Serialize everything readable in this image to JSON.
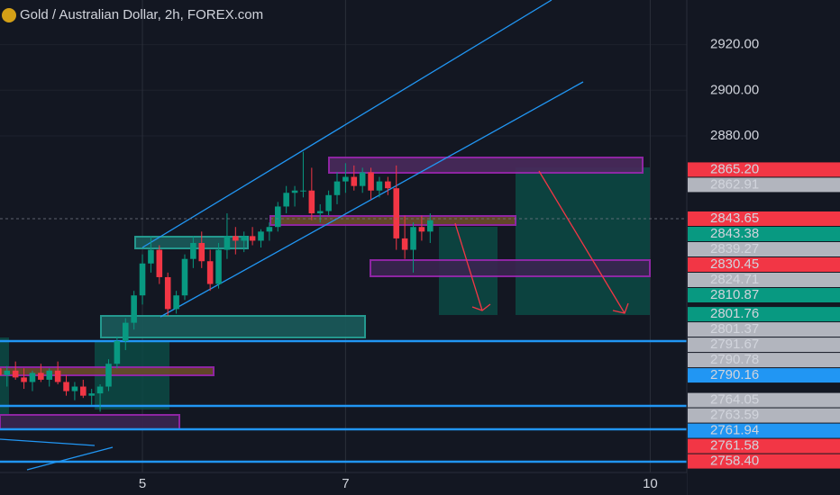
{
  "chart_data": {
    "type": "candlestick",
    "title": "Gold / Australian Dollar, 2h, FOREX.com",
    "x": [
      -17,
      -16,
      -15,
      -14,
      -13,
      -12,
      -11,
      -10,
      -9,
      -8,
      -7,
      -6,
      -5,
      -4,
      -3,
      -2,
      -1,
      0,
      1,
      2,
      3,
      4,
      5,
      6,
      7,
      8,
      9,
      10,
      11,
      12,
      13,
      14,
      15,
      16,
      17,
      18,
      19,
      20,
      21,
      22,
      23,
      24,
      25,
      26,
      27,
      28,
      29,
      30,
      31,
      32,
      33,
      34
    ],
    "open": [
      2778,
      2775,
      2777,
      2774,
      2772,
      2776,
      2773,
      2777,
      2772,
      2768,
      2770,
      2766,
      2767,
      2770,
      2780,
      2790,
      2798,
      2810,
      2824,
      2830,
      2818,
      2804,
      2810,
      2826,
      2833,
      2825,
      2815,
      2830,
      2836,
      2834,
      2836,
      2834,
      2838,
      2840,
      2849,
      2855,
      2856,
      2856,
      2846,
      2847,
      2854,
      2860,
      2862,
      2858,
      2864,
      2856,
      2860,
      2857,
      2835,
      2830,
      2840,
      2838
    ],
    "high": [
      2782,
      2779,
      2781,
      2778,
      2777,
      2780,
      2778,
      2781,
      2775,
      2772,
      2773,
      2769,
      2771,
      2782,
      2792,
      2800,
      2812,
      2828,
      2836,
      2832,
      2820,
      2812,
      2828,
      2836,
      2838,
      2830,
      2833,
      2846,
      2840,
      2838,
      2840,
      2839,
      2842,
      2851,
      2858,
      2858,
      2873,
      2866,
      2850,
      2856,
      2864,
      2868,
      2867,
      2866,
      2866,
      2862,
      2862,
      2867,
      2845,
      2842,
      2845,
      2846
    ],
    "low": [
      2772,
      2770,
      2773,
      2769,
      2768,
      2772,
      2770,
      2771,
      2766,
      2764,
      2765,
      2762,
      2759,
      2768,
      2778,
      2786,
      2795,
      2806,
      2820,
      2815,
      2801,
      2802,
      2808,
      2822,
      2822,
      2812,
      2813,
      2826,
      2828,
      2829,
      2832,
      2831,
      2834,
      2838,
      2846,
      2849,
      2853,
      2843,
      2842,
      2845,
      2850,
      2855,
      2856,
      2855,
      2852,
      2853,
      2854,
      2830,
      2826,
      2820,
      2834,
      2833
    ],
    "close": [
      2775,
      2777,
      2774,
      2772,
      2776,
      2773,
      2777,
      2772,
      2768,
      2770,
      2766,
      2767,
      2770,
      2780,
      2790,
      2798,
      2810,
      2824,
      2830,
      2818,
      2804,
      2810,
      2826,
      2833,
      2825,
      2815,
      2830,
      2836,
      2834,
      2836,
      2834,
      2838,
      2840,
      2849,
      2855,
      2856,
      2856,
      2846,
      2847,
      2854,
      2860,
      2862,
      2858,
      2864,
      2856,
      2860,
      2857,
      2835,
      2830,
      2840,
      2838,
      2843
    ],
    "up_color": "#089981",
    "down_color": "#f23645",
    "xlim": [
      -16.83,
      64.32
    ],
    "xticks": [
      {
        "value": 0,
        "label": "5"
      },
      {
        "value": 24,
        "label": "7"
      },
      {
        "value": 60,
        "label": "10"
      }
    ],
    "ylim": [
      2732.3,
      2939.6
    ],
    "yticks": [
      {
        "value": 2920,
        "label": "2920.00"
      },
      {
        "value": 2900,
        "label": "2900.00"
      },
      {
        "value": 2880,
        "label": "2880.00"
      }
    ],
    "grid": true,
    "price_labels": [
      {
        "value": 2865.2,
        "label": "2865.20",
        "color": "#f23645"
      },
      {
        "value": 2862.91,
        "label": "2862.91",
        "color": "#b2b5be"
      },
      {
        "value": 2843.65,
        "label": "2843.65",
        "color": "#f23645"
      },
      {
        "value": 2843.38,
        "label": "2843.38",
        "color": "#089981"
      },
      {
        "value": 2839.27,
        "label": "2839.27",
        "color": "#b2b5be"
      },
      {
        "value": 2830.45,
        "label": "2830.45",
        "color": "#f23645"
      },
      {
        "value": 2824.71,
        "label": "2824.71",
        "color": "#b2b5be"
      },
      {
        "value": 2810.87,
        "label": "2810.87",
        "color": "#089981"
      },
      {
        "value": 2801.76,
        "label": "2801.76",
        "color": "#089981"
      },
      {
        "value": 2801.37,
        "label": "2801.37",
        "color": "#b2b5be"
      },
      {
        "value": 2791.67,
        "label": "2791.67",
        "color": "#b2b5be"
      },
      {
        "value": 2790.78,
        "label": "2790.78",
        "color": "#b2b5be"
      },
      {
        "value": 2790.16,
        "label": "2790.16",
        "color": "#2196f3"
      },
      {
        "value": 2764.05,
        "label": "2764.05",
        "color": "#b2b5be"
      },
      {
        "value": 2763.59,
        "label": "2763.59",
        "color": "#b2b5be"
      },
      {
        "value": 2761.94,
        "label": "2761.94",
        "color": "#2196f3"
      },
      {
        "value": 2761.58,
        "label": "2761.58",
        "color": "#f23645"
      },
      {
        "value": 2758.4,
        "label": "2758.40",
        "color": "#f23645"
      }
    ]
  }
}
